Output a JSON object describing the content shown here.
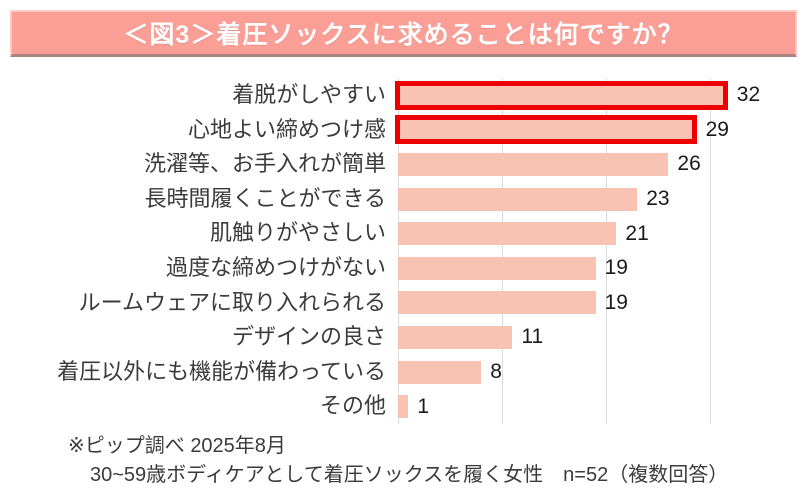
{
  "title": {
    "text": "＜図3＞着圧ソックスに求めることは何ですか？"
  },
  "chart_data": {
    "type": "bar",
    "orientation": "horizontal",
    "title": "＜図3＞着圧ソックスに求めることは何ですか？",
    "categories": [
      "着脱がしやすい",
      "心地よい締めつけ感",
      "洗濯等、お手入れが簡単",
      "長時間履くことができる",
      "肌触りがやさしい",
      "過度な締めつけがない",
      "ルームウェアに取り入れられる",
      "デザインの良さ",
      "着圧以外にも機能が備わっている",
      "その他"
    ],
    "values": [
      32,
      29,
      26,
      23,
      21,
      19,
      19,
      11,
      8,
      1
    ],
    "highlighted_indices": [
      0,
      1
    ],
    "value_labels": true,
    "xlim": [
      0,
      38
    ],
    "gridline_values": [
      0,
      10,
      20,
      30
    ],
    "legend": "none",
    "xlabel": "",
    "ylabel": ""
  },
  "footer": {
    "line1": "※ピップ調べ 2025年8月",
    "line2": "30~59歳ボディケアとして着圧ソックスを履く女性　n=52（複数回答）"
  },
  "colors": {
    "banner_bg": "#FA9E96",
    "banner_border": "#AB8480",
    "banner_border_light": "#FCC9C4",
    "banner_text": "#FFFFFF",
    "bar_fill": "#F8C3B2",
    "highlight_border": "#EE0000",
    "gridline": "#D9D9D9",
    "label_text": "#3B3B3B",
    "value_text": "#1A1A1A"
  }
}
